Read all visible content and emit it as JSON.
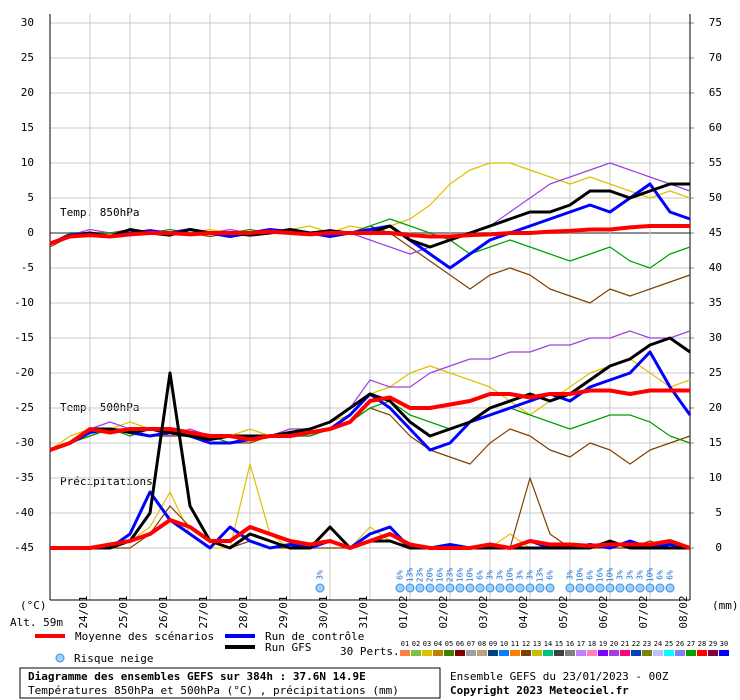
{
  "chart_data": {
    "type": "line",
    "title": "Diagramme des ensembles GEFS sur 384h : 37.6N 14.9E",
    "subtitle": "Températures 850hPa et 500hPa (°C) , précipitations (mm)",
    "run_info": "Ensemble GEFS du 23/01/2023 - 00Z",
    "copyright": "Copyright 2023 Meteociel.fr",
    "y_unit": "(°C)",
    "y2_unit": "(mm)",
    "altitude": "Alt. 59m",
    "annotations": [
      "Temp. 850hPa",
      "Temp. 500hPa",
      "Précipitations"
    ],
    "xlim": [
      0,
      384
    ],
    "xticks": [
      {
        "value": 24,
        "label": "24/01"
      },
      {
        "value": 48,
        "label": "25/01"
      },
      {
        "value": 72,
        "label": "26/01"
      },
      {
        "value": 96,
        "label": "27/01"
      },
      {
        "value": 120,
        "label": "28/01"
      },
      {
        "value": 144,
        "label": "29/01"
      },
      {
        "value": 168,
        "label": "30/01"
      },
      {
        "value": 192,
        "label": "31/01"
      },
      {
        "value": 216,
        "label": "01/02"
      },
      {
        "value": 240,
        "label": "02/02"
      },
      {
        "value": 264,
        "label": "03/02"
      },
      {
        "value": 288,
        "label": "04/02"
      },
      {
        "value": 312,
        "label": "05/02"
      },
      {
        "value": 336,
        "label": "06/02"
      },
      {
        "value": 360,
        "label": "07/02"
      },
      {
        "value": 384,
        "label": "08/02"
      }
    ],
    "ylim": [
      -45,
      30
    ],
    "yticks": [
      -45,
      -40,
      -35,
      -30,
      -25,
      -20,
      -15,
      -10,
      -5,
      0,
      5,
      10,
      15,
      20,
      25,
      30
    ],
    "y2lim": [
      0,
      75
    ],
    "y2ticks": [
      0,
      5,
      10,
      15,
      20,
      25,
      30,
      35,
      40,
      45,
      50,
      55,
      60,
      65,
      70,
      75
    ],
    "grid": true,
    "x": [
      0,
      12,
      24,
      36,
      48,
      60,
      72,
      84,
      96,
      108,
      120,
      132,
      144,
      156,
      168,
      180,
      192,
      204,
      216,
      228,
      240,
      252,
      264,
      276,
      288,
      300,
      312,
      324,
      336,
      348,
      360,
      372,
      384
    ],
    "series": [
      {
        "color": "#e0c000",
        "values": [
          -1.5,
          0,
          0,
          -0.5,
          0,
          0.3,
          0,
          0,
          0.5,
          0,
          0,
          0,
          0.5,
          1,
          0,
          1,
          0.5,
          1,
          2,
          4,
          7,
          9,
          10,
          10,
          9,
          8,
          7,
          8,
          7,
          6,
          5,
          6,
          5
        ]
      },
      {
        "color": "#804000",
        "values": [
          -2,
          -0.5,
          0,
          0,
          0.5,
          0,
          0,
          0,
          -0.5,
          0,
          0,
          0.5,
          0,
          0,
          -0.5,
          0,
          1,
          0,
          -2,
          -4,
          -6,
          -8,
          -6,
          -5,
          -6,
          -8,
          -9,
          -10,
          -8,
          -9,
          -8,
          -7,
          -6
        ]
      },
      {
        "color": "#a040e0",
        "values": [
          -1.5,
          -0.3,
          0.5,
          0,
          0,
          0.5,
          0,
          0,
          0,
          0.5,
          0,
          0,
          0,
          0,
          0.5,
          0,
          -1,
          -2,
          -3,
          -2,
          -1,
          0,
          1,
          3,
          5,
          7,
          8,
          9,
          10,
          9,
          8,
          7,
          6
        ]
      },
      {
        "color": "#00a000",
        "values": [
          -1.5,
          0,
          0,
          0,
          0,
          0,
          0.5,
          0,
          0,
          0,
          0.5,
          0,
          0,
          0,
          0,
          0,
          1,
          2,
          1,
          0,
          -1,
          -3,
          -2,
          -1,
          -2,
          -3,
          -4,
          -3,
          -2,
          -4,
          -5,
          -3,
          -2
        ]
      },
      {
        "color": "#e0c000",
        "values": [
          -31,
          -29,
          -28,
          -28,
          -27,
          -28,
          -28,
          -29,
          -29,
          -29,
          -28,
          -29,
          -28,
          -28,
          -27,
          -26,
          -23,
          -22,
          -20,
          -19,
          -20,
          -21,
          -22,
          -24,
          -26,
          -24,
          -22,
          -20,
          -19,
          -18,
          -20,
          -22,
          -21
        ]
      },
      {
        "color": "#804000",
        "values": [
          -31,
          -30,
          -29,
          -28,
          -28,
          -29,
          -29,
          -29,
          -30,
          -30,
          -30,
          -29,
          -29,
          -29,
          -28,
          -27,
          -25,
          -26,
          -29,
          -31,
          -32,
          -33,
          -30,
          -28,
          -29,
          -31,
          -32,
          -30,
          -31,
          -33,
          -31,
          -30,
          -29
        ]
      },
      {
        "color": "#a040e0",
        "values": [
          -31,
          -30,
          -28,
          -27,
          -28,
          -28,
          -29,
          -28,
          -29,
          -29,
          -29,
          -29,
          -28,
          -28,
          -27,
          -25,
          -21,
          -22,
          -22,
          -20,
          -19,
          -18,
          -18,
          -17,
          -17,
          -16,
          -16,
          -15,
          -15,
          -14,
          -15,
          -15,
          -14
        ]
      },
      {
        "color": "#00a000",
        "values": [
          -31,
          -30,
          -29,
          -28,
          -29,
          -28,
          -28,
          -29,
          -29,
          -30,
          -29,
          -29,
          -29,
          -29,
          -28,
          -27,
          -25,
          -24,
          -26,
          -27,
          -28,
          -27,
          -26,
          -25,
          -26,
          -27,
          -28,
          -27,
          -26,
          -26,
          -27,
          -29,
          -30
        ]
      },
      {
        "color": "#e0c000",
        "axis": "y2",
        "values": [
          0,
          0,
          0,
          0,
          1,
          3,
          8,
          2,
          0,
          0,
          12,
          2,
          0,
          0,
          1,
          0,
          3,
          1,
          0,
          0,
          0,
          0,
          0,
          2,
          0,
          0,
          0,
          0,
          0,
          0,
          0,
          0,
          0
        ]
      },
      {
        "color": "#804000",
        "axis": "y2",
        "values": [
          0,
          0,
          0,
          0,
          0,
          2,
          6,
          3,
          1,
          0,
          1,
          0,
          0,
          0,
          0,
          0,
          1,
          2,
          0,
          0,
          0,
          0,
          0,
          0,
          10,
          2,
          0,
          0,
          0,
          0,
          1,
          0,
          0
        ]
      },
      {
        "color": "#0000ff",
        "values": [
          -1.5,
          -0.3,
          0,
          -0.5,
          0,
          0.3,
          0,
          0.5,
          0,
          -0.5,
          0,
          0.5,
          0.2,
          0,
          -0.5,
          0,
          0.5,
          1,
          -1,
          -3,
          -5,
          -3,
          -1,
          0,
          1,
          2,
          3,
          4,
          3,
          5,
          7,
          3,
          2
        ]
      },
      {
        "color": "#000000",
        "values": [
          -1.5,
          -0.5,
          0,
          -0.5,
          0.5,
          0,
          -0.3,
          0.5,
          0,
          0,
          -0.3,
          0,
          0.5,
          0,
          0.3,
          0,
          0,
          1,
          -1,
          -2,
          -1,
          0,
          1,
          2,
          3,
          3,
          4,
          6,
          6,
          5,
          6,
          7,
          7
        ]
      },
      {
        "color": "#ff0000",
        "values": [
          -1.5,
          -0.5,
          -0.3,
          -0.5,
          -0.2,
          0,
          0,
          -0.2,
          0,
          0,
          0,
          0.2,
          0,
          -0.2,
          0,
          0,
          0,
          0,
          -0.3,
          -0.5,
          -0.5,
          -0.3,
          -0.2,
          0,
          0,
          0.2,
          0.3,
          0.5,
          0.5,
          0.8,
          1,
          1,
          1
        ]
      },
      {
        "color": "#0000ff",
        "values": [
          -31,
          -30,
          -28.5,
          -28,
          -28.5,
          -29,
          -28.5,
          -29,
          -30,
          -30,
          -29.5,
          -29,
          -29,
          -28.5,
          -28,
          -26,
          -23,
          -25,
          -28,
          -31,
          -30,
          -27,
          -26,
          -25,
          -24,
          -23,
          -24,
          -22,
          -21,
          -20,
          -17,
          -22,
          -26
        ]
      },
      {
        "color": "#000000",
        "values": [
          -31,
          -30,
          -28,
          -28,
          -28.5,
          -28,
          -28.5,
          -29,
          -29.5,
          -29,
          -29,
          -29,
          -28.5,
          -28,
          -27,
          -25,
          -23,
          -24,
          -27,
          -29,
          -28,
          -27,
          -25,
          -24,
          -23,
          -24,
          -23,
          -21,
          -19,
          -18,
          -16,
          -15,
          -17
        ]
      },
      {
        "color": "#ff0000",
        "values": [
          -31,
          -30,
          -28,
          -28.5,
          -28,
          -28,
          -28,
          -28.5,
          -29,
          -29,
          -29.5,
          -29,
          -29,
          -28.5,
          -28,
          -27,
          -24,
          -23.5,
          -25,
          -25,
          -24.5,
          -24,
          -23,
          -23,
          -23.5,
          -23,
          -23,
          -22.5,
          -22.5,
          -23,
          -22.5,
          -22.5,
          -22.5
        ]
      },
      {
        "color": "#0000ff",
        "axis": "y2",
        "values": [
          0,
          0,
          0,
          0,
          2,
          8,
          4,
          2,
          0,
          3,
          1,
          0,
          0.5,
          0,
          1,
          0,
          2,
          3,
          0,
          0,
          0.5,
          0,
          0,
          0,
          1,
          0,
          0,
          0.5,
          0,
          1,
          0,
          0.5,
          0
        ]
      },
      {
        "color": "#000000",
        "axis": "y2",
        "values": [
          0,
          0,
          0,
          0,
          1,
          5,
          25,
          6,
          1,
          0,
          2,
          1,
          0,
          0,
          3,
          0,
          1,
          1,
          0,
          0,
          0,
          0,
          0,
          0,
          0,
          0,
          0,
          0,
          1,
          0,
          0,
          0,
          0
        ]
      },
      {
        "color": "#ff0000",
        "axis": "y2",
        "values": [
          0,
          0,
          0,
          0.5,
          1,
          2,
          4,
          3,
          1,
          1,
          3,
          2,
          1,
          0.5,
          1,
          0,
          1,
          2,
          0.5,
          0,
          0,
          0,
          0.5,
          0,
          1,
          0.5,
          0.5,
          0.3,
          0.5,
          0.5,
          0.5,
          1,
          0
        ]
      }
    ],
    "legend": [
      {
        "name": "Moyenne des scénarios",
        "color": "#ff0000"
      },
      {
        "name": "Run de contrôle",
        "color": "#0000ff"
      },
      {
        "name": "Run GFS",
        "color": "#000000"
      }
    ],
    "snow_label": "Risque neige",
    "perts_label": "30 Perts.",
    "snow": {
      "x": [
        162,
        210,
        216,
        222,
        228,
        234,
        240,
        246,
        252,
        258,
        264,
        270,
        276,
        282,
        288,
        294,
        300,
        312,
        318,
        324,
        330,
        336,
        342,
        348,
        354,
        360,
        366,
        372
      ],
      "labels": [
        "3%",
        "6%",
        "13%",
        "23%",
        "20%",
        "16%",
        "23%",
        "16%",
        "10%",
        "6%",
        "3%",
        "3%",
        "10%",
        "3%",
        "3%",
        "13%",
        "6%",
        "3%",
        "10%",
        "6%",
        "16%",
        "10%",
        "3%",
        "3%",
        "3%",
        "10%",
        "6%",
        "6%"
      ]
    },
    "members": [
      {
        "name": "01",
        "color": "#ff8040"
      },
      {
        "name": "02",
        "color": "#80c040"
      },
      {
        "name": "03",
        "color": "#e0c000"
      },
      {
        "name": "04",
        "color": "#c08000"
      },
      {
        "name": "05",
        "color": "#408000"
      },
      {
        "name": "06",
        "color": "#800000"
      },
      {
        "name": "07",
        "color": "#a0a0a0"
      },
      {
        "name": "08",
        "color": "#c0a080"
      },
      {
        "name": "09",
        "color": "#004080"
      },
      {
        "name": "10",
        "color": "#0080ff"
      },
      {
        "name": "11",
        "color": "#ff8000"
      },
      {
        "name": "12",
        "color": "#804000"
      },
      {
        "name": "13",
        "color": "#c0c000"
      },
      {
        "name": "14",
        "color": "#00c080"
      },
      {
        "name": "15",
        "color": "#404040"
      },
      {
        "name": "16",
        "color": "#808080"
      },
      {
        "name": "17",
        "color": "#c080ff"
      },
      {
        "name": "18",
        "color": "#ff80c0"
      },
      {
        "name": "19",
        "color": "#8000ff"
      },
      {
        "name": "20",
        "color": "#a040e0"
      },
      {
        "name": "21",
        "color": "#ff0080"
      },
      {
        "name": "22",
        "color": "#0040c0"
      },
      {
        "name": "23",
        "color": "#808000"
      },
      {
        "name": "24",
        "color": "#c0c0ff"
      },
      {
        "name": "25",
        "color": "#00ffff"
      },
      {
        "name": "26",
        "color": "#8080ff"
      },
      {
        "name": "27",
        "color": "#00a000"
      },
      {
        "name": "28",
        "color": "#ff0000"
      },
      {
        "name": "29",
        "color": "#800040"
      },
      {
        "name": "30",
        "color": "#0000ff"
      }
    ]
  }
}
